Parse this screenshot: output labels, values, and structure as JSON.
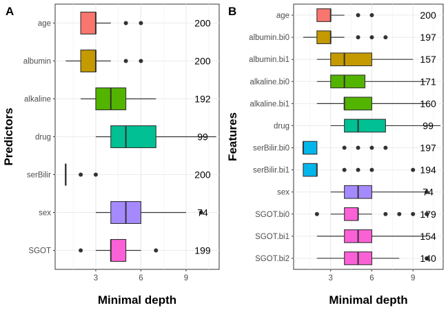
{
  "chart_data": [
    {
      "type": "boxplot",
      "panel": "A",
      "xlabel": "Minimal depth",
      "ylabel": "Predictors",
      "xlim": [
        0.3,
        11.2
      ],
      "xticks": [
        3,
        6,
        9
      ],
      "grid": true,
      "count_x": 10.1,
      "categories": [
        {
          "label": "age",
          "q1": 2,
          "median": 3,
          "q3": 3,
          "wlo": 2,
          "whi": 4,
          "outliers": [
            5,
            6
          ],
          "count": "200",
          "color": "#F8766D"
        },
        {
          "label": "albumin",
          "q1": 2,
          "median": 3,
          "q3": 3,
          "wlo": 1,
          "whi": 4,
          "outliers": [
            5,
            6
          ],
          "count": "200",
          "color": "#C49A00"
        },
        {
          "label": "alkaline",
          "q1": 3,
          "median": 4,
          "q3": 5,
          "wlo": 2,
          "whi": 7,
          "outliers": [],
          "count": "192",
          "color": "#53B400"
        },
        {
          "label": "drug",
          "q1": 4,
          "median": 5,
          "q3": 7,
          "wlo": 3,
          "whi": 11,
          "outliers": [],
          "count": "99",
          "color": "#00C094"
        },
        {
          "label": "serBilir",
          "q1": 1,
          "median": 1,
          "q3": 1,
          "wlo": 1,
          "whi": 1,
          "outliers": [
            2,
            3
          ],
          "count": "200",
          "color": "#00B6EB"
        },
        {
          "label": "sex",
          "q1": 4,
          "median": 5,
          "q3": 6,
          "wlo": 3,
          "whi": 9,
          "outliers": [
            10
          ],
          "count": "74",
          "color": "#A58AFF"
        },
        {
          "label": "SGOT",
          "q1": 4,
          "median": 4,
          "q3": 5,
          "wlo": 3,
          "whi": 6,
          "outliers": [
            2,
            7
          ],
          "count": "199",
          "color": "#FB61D7"
        }
      ]
    },
    {
      "type": "boxplot",
      "panel": "B",
      "xlabel": "Minimal depth",
      "ylabel": "Features",
      "xlim": [
        0.3,
        11.2
      ],
      "xticks": [
        3,
        6,
        9
      ],
      "grid": true,
      "count_x": 10.1,
      "categories": [
        {
          "label": "age",
          "q1": 2,
          "median": 3,
          "q3": 3,
          "wlo": 2,
          "whi": 4,
          "outliers": [
            5,
            6
          ],
          "count": "200",
          "color": "#F8766D"
        },
        {
          "label": "albumin.bi0",
          "q1": 2,
          "median": 3,
          "q3": 3,
          "wlo": 1,
          "whi": 4,
          "outliers": [
            5,
            6,
            7
          ],
          "count": "197",
          "color": "#C49A00"
        },
        {
          "label": "albumin.bi1",
          "q1": 3,
          "median": 4,
          "q3": 6,
          "wlo": 2,
          "whi": 9,
          "outliers": [],
          "count": "157",
          "color": "#C49A00"
        },
        {
          "label": "alkaline.bi0",
          "q1": 3,
          "median": 4,
          "q3": 5.5,
          "wlo": 2,
          "whi": 10,
          "outliers": [],
          "count": "171",
          "color": "#53B400"
        },
        {
          "label": "alkaline.bi1",
          "q1": 4,
          "median": 4,
          "q3": 6,
          "wlo": 2,
          "whi": 10,
          "outliers": [],
          "count": "160",
          "color": "#53B400"
        },
        {
          "label": "drug",
          "q1": 4,
          "median": 5,
          "q3": 7,
          "wlo": 3,
          "whi": 11,
          "outliers": [],
          "count": "99",
          "color": "#00C094"
        },
        {
          "label": "serBilir.bi0",
          "q1": 1,
          "median": 1,
          "q3": 2,
          "wlo": 1,
          "whi": 2,
          "outliers": [
            4,
            5,
            6,
            7
          ],
          "count": "197",
          "color": "#00B6EB"
        },
        {
          "label": "serBilir.bi1",
          "q1": 1,
          "median": 2,
          "q3": 2,
          "wlo": 1,
          "whi": 2,
          "outliers": [
            4,
            5,
            6,
            9
          ],
          "count": "194",
          "color": "#00B6EB"
        },
        {
          "label": "sex",
          "q1": 4,
          "median": 5,
          "q3": 6,
          "wlo": 3,
          "whi": 10,
          "outliers": [
            10
          ],
          "count": "74",
          "color": "#A58AFF"
        },
        {
          "label": "SGOT.bi0",
          "q1": 4,
          "median": 5,
          "q3": 5,
          "wlo": 3,
          "whi": 6,
          "outliers": [
            2,
            7,
            8,
            9,
            10
          ],
          "count": "179",
          "color": "#FB61D7"
        },
        {
          "label": "SGOT.bi1",
          "q1": 4,
          "median": 5,
          "q3": 6,
          "wlo": 2,
          "whi": 10,
          "outliers": [],
          "count": "154",
          "color": "#FB61D7"
        },
        {
          "label": "SGOT.bi2",
          "q1": 4,
          "median": 5,
          "q3": 6,
          "wlo": 2,
          "whi": 8,
          "outliers": [
            10
          ],
          "count": "140",
          "color": "#FB61D7"
        }
      ]
    }
  ]
}
